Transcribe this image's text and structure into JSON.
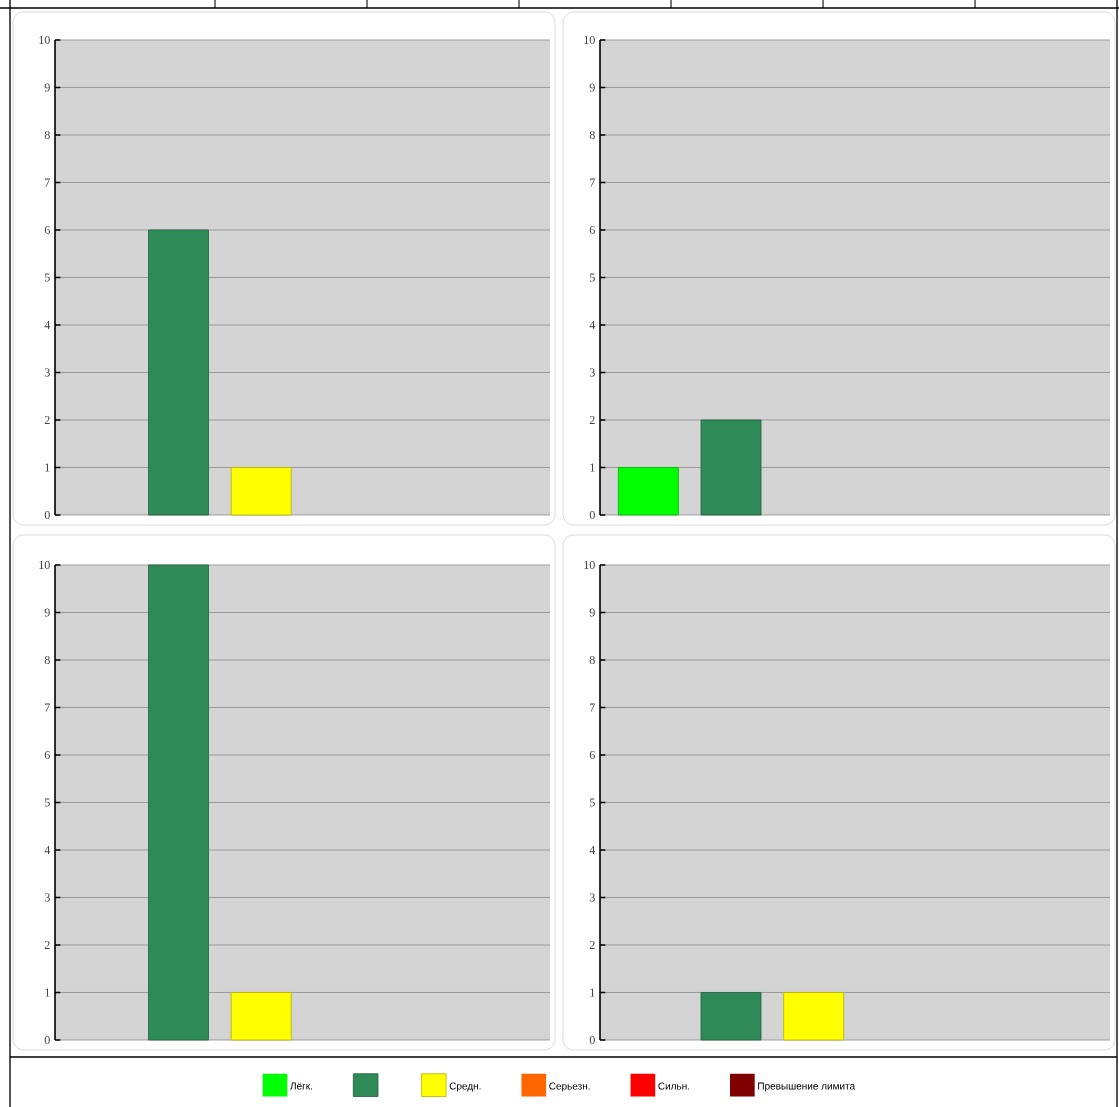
{
  "chart_data": [
    {
      "type": "bar",
      "categories": [
        null
      ],
      "ylim": [
        0,
        10
      ],
      "yticks": [
        0,
        1,
        2,
        3,
        4,
        5,
        6,
        7,
        8,
        9,
        10
      ],
      "grid": "y",
      "tick_labels": "y",
      "series": [
        {
          "color": "#00ff00",
          "values": [
            0
          ]
        },
        {
          "color": "#2e8b57",
          "values": [
            6
          ]
        },
        {
          "color": "#ffff00",
          "values": [
            1
          ]
        },
        {
          "color": "#ff6600",
          "values": [
            0
          ]
        },
        {
          "color": "#ff0000",
          "values": [
            0
          ]
        },
        {
          "color": "#800000",
          "values": [
            0
          ]
        }
      ]
    },
    {
      "type": "bar",
      "categories": [
        null
      ],
      "ylim": [
        0,
        10
      ],
      "yticks": [
        0,
        1,
        2,
        3,
        4,
        5,
        6,
        7,
        8,
        9,
        10
      ],
      "grid": "y",
      "tick_labels": "y",
      "series": [
        {
          "color": "#00ff00",
          "values": [
            1
          ]
        },
        {
          "color": "#2e8b57",
          "values": [
            2
          ]
        },
        {
          "color": "#ffff00",
          "values": [
            0
          ]
        },
        {
          "color": "#ff6600",
          "values": [
            0
          ]
        },
        {
          "color": "#ff0000",
          "values": [
            0
          ]
        },
        {
          "color": "#800000",
          "values": [
            0
          ]
        }
      ]
    },
    {
      "type": "bar",
      "categories": [
        null
      ],
      "ylim": [
        0,
        10
      ],
      "yticks": [
        0,
        1,
        2,
        3,
        4,
        5,
        6,
        7,
        8,
        9,
        10
      ],
      "grid": "y",
      "tick_labels": "y",
      "series": [
        {
          "color": "#00ff00",
          "values": [
            0
          ]
        },
        {
          "color": "#2e8b57",
          "values": [
            10
          ]
        },
        {
          "color": "#ffff00",
          "values": [
            1
          ]
        },
        {
          "color": "#ff6600",
          "values": [
            0
          ]
        },
        {
          "color": "#ff0000",
          "values": [
            0
          ]
        },
        {
          "color": "#800000",
          "values": [
            0
          ]
        }
      ]
    },
    {
      "type": "bar",
      "categories": [
        null
      ],
      "ylim": [
        0,
        10
      ],
      "yticks": [
        0,
        1,
        2,
        3,
        4,
        5,
        6,
        7,
        8,
        9,
        10
      ],
      "grid": "y",
      "tick_labels": "y",
      "legend": "bottom",
      "series": [
        {
          "name": "Лёгк.",
          "color": "#00ff00",
          "values": [
            0
          ]
        },
        {
          "color": "#2e8b57",
          "values": [
            1
          ]
        },
        {
          "name": "Средн.",
          "color": "#ffff00",
          "values": [
            1
          ]
        },
        {
          "name": "Серьезн.",
          "color": "#ff6600",
          "values": [
            0
          ]
        },
        {
          "name": "Сильн.",
          "color": "#ff0000",
          "values": [
            0
          ]
        },
        {
          "name": "Превышение лимита",
          "color": "#800000",
          "values": [
            0
          ]
        }
      ]
    }
  ]
}
